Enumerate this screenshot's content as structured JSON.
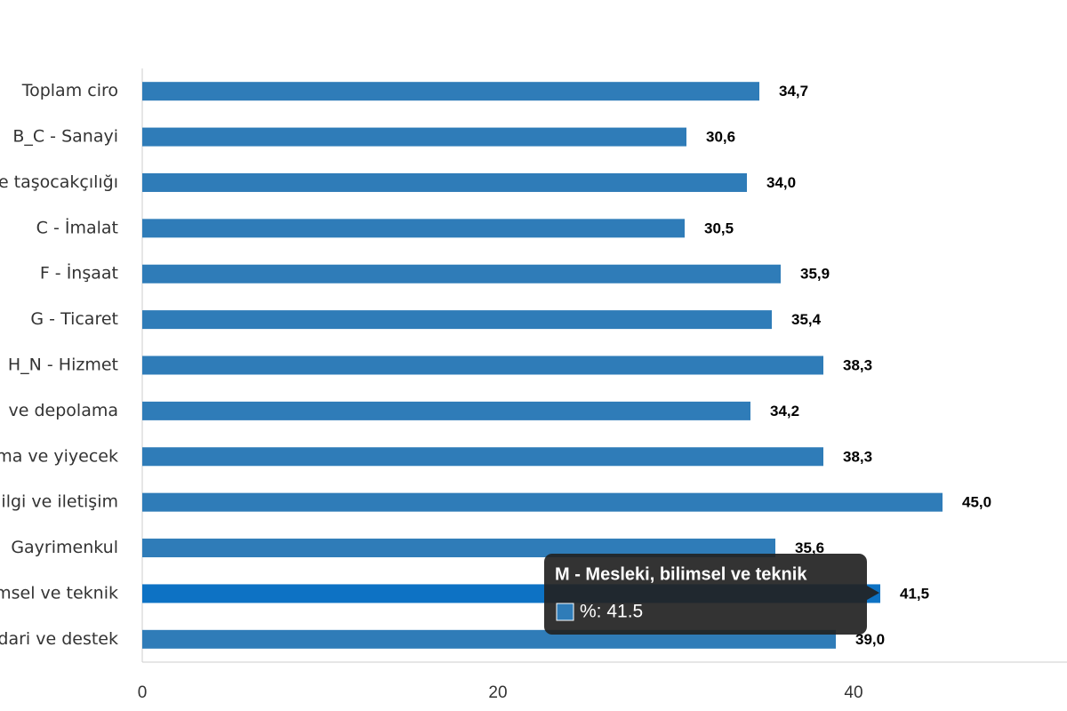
{
  "chart_data": {
    "type": "bar",
    "orientation": "horizontal",
    "categories": [
      "Toplam ciro",
      "B_C - Sanayi",
      "e taşocakçılığı",
      "C - İmalat",
      "F - İnşaat",
      "G - Ticaret",
      "H_N - Hizmet",
      "ve depolama",
      "ma ve yiyecek",
      "ilgi ve iletişim",
      "Gayrimenkul",
      "msel ve teknik",
      "dari ve destek"
    ],
    "series": [
      {
        "name": "%",
        "color": "#2f7cb8",
        "values": [
          34.7,
          30.6,
          34.0,
          30.5,
          35.9,
          35.4,
          38.3,
          34.2,
          38.3,
          45.0,
          35.6,
          41.5,
          39.0
        ],
        "value_labels": [
          "34,7",
          "30,6",
          "34,0",
          "30,5",
          "35,9",
          "35,4",
          "38,3",
          "34,2",
          "38,3",
          "45,0",
          "35,6",
          "41,5",
          "39,0"
        ]
      }
    ],
    "highlight_color": "#0d72c4",
    "xlim": [
      0,
      52
    ],
    "xticks": [
      0,
      20,
      40
    ],
    "tooltip": {
      "index": 11,
      "title": "M - Mesleki, bilimsel ve teknik",
      "text": "%: 41.5"
    }
  }
}
